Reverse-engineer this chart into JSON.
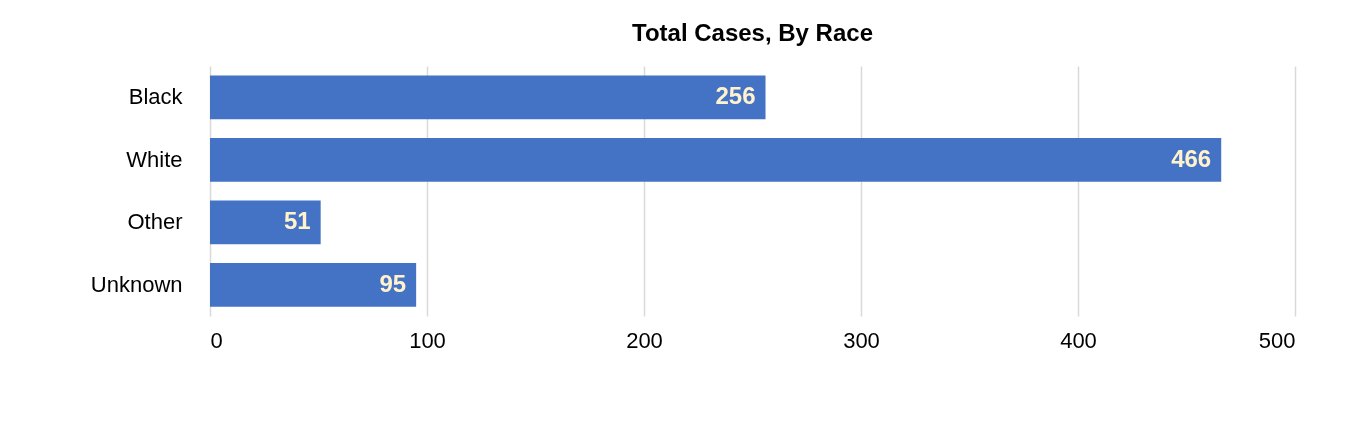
{
  "chart_data": {
    "type": "bar",
    "title": "Total Cases, By Race",
    "orientation": "horizontal",
    "categories": [
      "Black",
      "White",
      "Other",
      "Unknown"
    ],
    "values": [
      256,
      466,
      51,
      95
    ],
    "color": "#4472c4",
    "xlim": [
      0,
      500
    ],
    "xticks": [
      0,
      100,
      200,
      300,
      400,
      500
    ],
    "grid": "x",
    "data_labels": true
  }
}
